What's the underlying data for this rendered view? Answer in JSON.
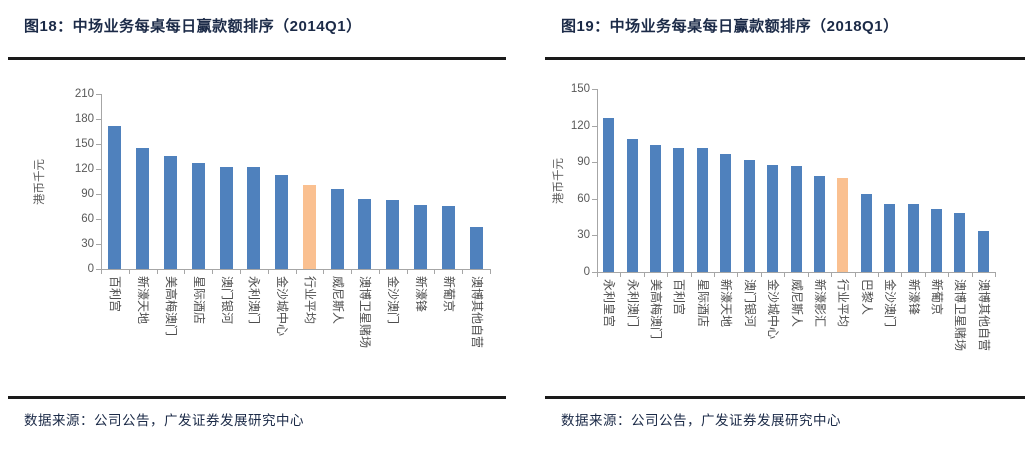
{
  "source_text": "数据来源：公司公告，广发证券发展研究中心",
  "colors": {
    "title_navy": "#1b2a47",
    "bar_blue": "#4f81bd",
    "bar_highlight_orange": "#fac090",
    "axis_gray": "#a6a6a6",
    "tick_text_gray": "#595959",
    "rule_dark": "#1a1a1a"
  },
  "chart_data": [
    {
      "type": "bar",
      "title": "图18：中场业务每桌每日赢款额排序（2014Q1）",
      "ylabel": "港币千元",
      "ylim": [
        0,
        210
      ],
      "ytick_step": 30,
      "grid": false,
      "legend": false,
      "categories": [
        "百利宫",
        "新濠天地",
        "美高梅澳门",
        "星际酒店",
        "澳门银河",
        "永利澳门",
        "金沙城中心",
        "行业平均",
        "威尼斯人",
        "澳博卫星赌场",
        "金沙澳门",
        "新濠锋",
        "新葡京",
        "澳博其他自营"
      ],
      "values": [
        172,
        145,
        136,
        127,
        122,
        122,
        113,
        101,
        96,
        84,
        83,
        77,
        76,
        50
      ],
      "highlight_category": "行业平均",
      "highlight_index": 7
    },
    {
      "type": "bar",
      "title": "图19：中场业务每桌每日赢款额排序（2018Q1）",
      "ylabel": "港币千元",
      "ylim": [
        0,
        150
      ],
      "ytick_step": 30,
      "grid": false,
      "legend": false,
      "categories": [
        "永利皇宫",
        "永利澳门",
        "美高梅澳门",
        "百利宫",
        "星际酒店",
        "新濠天地",
        "澳门银河",
        "金沙城中心",
        "威尼斯人",
        "新濠影汇",
        "行业平均",
        "巴黎人",
        "金沙澳门",
        "新濠锋",
        "新葡京",
        "澳博卫星赌场",
        "澳博其他自营"
      ],
      "values": [
        126,
        109,
        104,
        102,
        102,
        97,
        92,
        88,
        87,
        79,
        77,
        64,
        56,
        56,
        52,
        48,
        34
      ],
      "highlight_category": "行业平均",
      "highlight_index": 10
    }
  ]
}
